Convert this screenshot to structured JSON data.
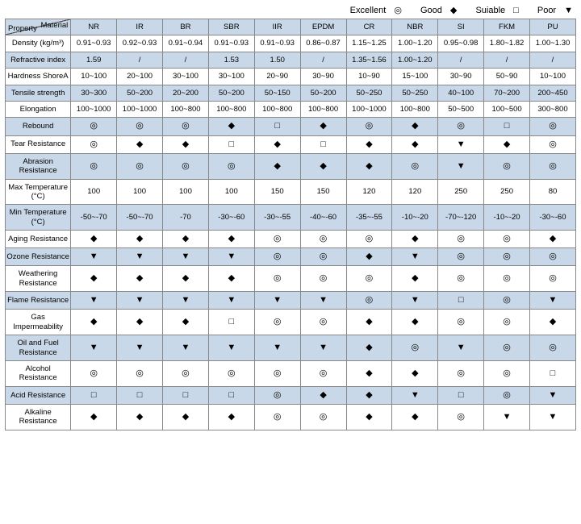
{
  "legend": [
    {
      "label": "Excellent",
      "sym": "◎"
    },
    {
      "label": "Good",
      "sym": "◆"
    },
    {
      "label": "Suiable",
      "sym": "□"
    },
    {
      "label": "Poor",
      "sym": "▼"
    }
  ],
  "corner": {
    "top": "Material",
    "bottom": "Property"
  },
  "columns": [
    "NR",
    "IR",
    "BR",
    "SBR",
    "IIR",
    "EPDM",
    "CR",
    "NBR",
    "SI",
    "FKM",
    "PU"
  ],
  "rows": [
    {
      "label": "Density (kg/m³)",
      "shade": false,
      "cells": [
        "0.91~0.93",
        "0.92~0.93",
        "0.91~0.94",
        "0.91~0.93",
        "0.91~0.93",
        "0.86~0.87",
        "1.15~1.25",
        "1.00~1.20",
        "0.95~0.98",
        "1.80~1.82",
        "1.00~1.30"
      ]
    },
    {
      "label": "Refractive index",
      "shade": true,
      "cells": [
        "1.59",
        "/",
        "/",
        "1.53",
        "1.50",
        "/",
        "1.35~1.56",
        "1.00~1.20",
        "/",
        "/",
        "/"
      ]
    },
    {
      "label": "Hardness ShoreA",
      "shade": false,
      "cells": [
        "10~100",
        "20~100",
        "30~100",
        "30~100",
        "20~90",
        "30~90",
        "10~90",
        "15~100",
        "30~90",
        "50~90",
        "10~100"
      ]
    },
    {
      "label": "Tensile strength",
      "shade": true,
      "cells": [
        "30~300",
        "50~200",
        "20~200",
        "50~200",
        "50~150",
        "50~200",
        "50~250",
        "50~250",
        "40~100",
        "70~200",
        "200~450"
      ]
    },
    {
      "label": "Elongation",
      "shade": false,
      "cells": [
        "100~1000",
        "100~1000",
        "100~800",
        "100~800",
        "100~800",
        "100~800",
        "100~1000",
        "100~800",
        "50~500",
        "100~500",
        "300~800"
      ]
    },
    {
      "label": "Rebound",
      "shade": true,
      "cells": [
        "◎",
        "◎",
        "◎",
        "◆",
        "□",
        "◆",
        "◎",
        "◆",
        "◎",
        "□",
        "◎"
      ]
    },
    {
      "label": "Tear Resistance",
      "shade": false,
      "cells": [
        "◎",
        "◆",
        "◆",
        "□",
        "◆",
        "□",
        "◆",
        "◆",
        "▼",
        "◆",
        "◎"
      ]
    },
    {
      "label": "Abrasion Resistance",
      "shade": true,
      "cells": [
        "◎",
        "◎",
        "◎",
        "◎",
        "◆",
        "◆",
        "◆",
        "◎",
        "▼",
        "◎",
        "◎"
      ]
    },
    {
      "label": "Max Temperature (°C)",
      "shade": false,
      "cells": [
        "100",
        "100",
        "100",
        "100",
        "150",
        "150",
        "120",
        "120",
        "250",
        "250",
        "80"
      ]
    },
    {
      "label": "Min Temperature (°C)",
      "shade": true,
      "cells": [
        "-50~-70",
        "-50~-70",
        "-70",
        "-30~-60",
        "-30~-55",
        "-40~-60",
        "-35~-55",
        "-10~-20",
        "-70~-120",
        "-10~-20",
        "-30~-60"
      ]
    },
    {
      "label": "Aging Resistance",
      "shade": false,
      "cells": [
        "◆",
        "◆",
        "◆",
        "◆",
        "◎",
        "◎",
        "◎",
        "◆",
        "◎",
        "◎",
        "◆"
      ]
    },
    {
      "label": "Ozone Resistance",
      "shade": true,
      "cells": [
        "▼",
        "▼",
        "▼",
        "▼",
        "◎",
        "◎",
        "◆",
        "▼",
        "◎",
        "◎",
        "◎"
      ]
    },
    {
      "label": "Weathering Resistance",
      "shade": false,
      "cells": [
        "◆",
        "◆",
        "◆",
        "◆",
        "◎",
        "◎",
        "◎",
        "◆",
        "◎",
        "◎",
        "◎"
      ]
    },
    {
      "label": "Flame Resistance",
      "shade": true,
      "cells": [
        "▼",
        "▼",
        "▼",
        "▼",
        "▼",
        "▼",
        "◎",
        "▼",
        "□",
        "◎",
        "▼"
      ]
    },
    {
      "label": "Gas Impermeability",
      "shade": false,
      "cells": [
        "◆",
        "◆",
        "◆",
        "□",
        "◎",
        "◎",
        "◆",
        "◆",
        "◎",
        "◎",
        "◆"
      ]
    },
    {
      "label": "Oil and Fuel Resistance",
      "shade": true,
      "cells": [
        "▼",
        "▼",
        "▼",
        "▼",
        "▼",
        "▼",
        "◆",
        "◎",
        "▼",
        "◎",
        "◎"
      ]
    },
    {
      "label": "Alcohol Resistance",
      "shade": false,
      "cells": [
        "◎",
        "◎",
        "◎",
        "◎",
        "◎",
        "◎",
        "◆",
        "◆",
        "◎",
        "◎",
        "□"
      ]
    },
    {
      "label": "Acid Resistance",
      "shade": true,
      "cells": [
        "□",
        "□",
        "□",
        "□",
        "◎",
        "◆",
        "◆",
        "▼",
        "□",
        "◎",
        "▼"
      ]
    },
    {
      "label": "Alkaline Resistance",
      "shade": false,
      "cells": [
        "◆",
        "◆",
        "◆",
        "◆",
        "◎",
        "◎",
        "◆",
        "◆",
        "◎",
        "▼",
        "▼"
      ]
    }
  ],
  "symbolSet": [
    "◎",
    "◆",
    "□",
    "▼"
  ]
}
